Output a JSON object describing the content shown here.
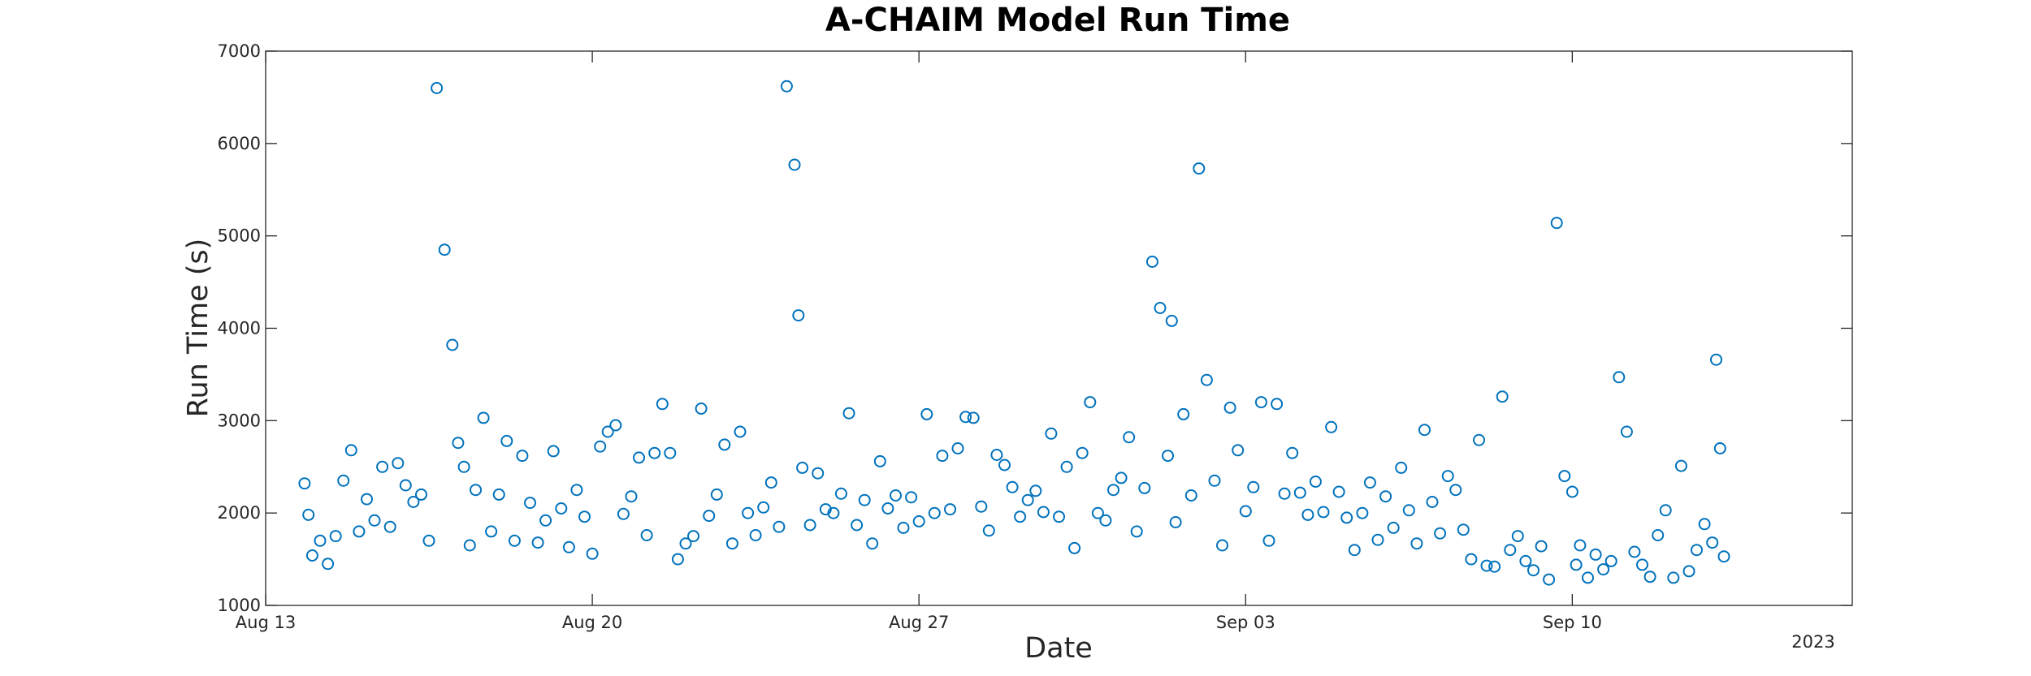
{
  "chart_data": {
    "type": "scatter",
    "title": "A-CHAIM Model Run Time",
    "xlabel": "Date",
    "ylabel": "Run Time (s)",
    "x_tick_labels": [
      "Aug 13",
      "Aug 20",
      "Aug 27",
      "Sep 03",
      "Sep 10"
    ],
    "x_tick_dates": [
      "2023-08-13",
      "2023-08-20",
      "2023-08-27",
      "2023-09-03",
      "2023-09-10"
    ],
    "x_secondary_label": "2023",
    "xlim": [
      "2023-08-13",
      "2023-09-16"
    ],
    "y_ticks": [
      1000,
      2000,
      3000,
      4000,
      5000,
      6000,
      7000
    ],
    "ylim": [
      1000,
      7000
    ],
    "grid": false,
    "marker": "open-circle",
    "marker_color": "#0072BD",
    "series": [
      {
        "x": [
          "2023-08-13 20:00",
          "2023-08-13 22:00",
          "2023-08-14 00:00",
          "2023-08-14 04:00",
          "2023-08-14 08:00",
          "2023-08-14 12:00",
          "2023-08-14 16:00",
          "2023-08-14 20:00",
          "2023-08-15 00:00",
          "2023-08-15 04:00",
          "2023-08-15 08:00",
          "2023-08-15 12:00",
          "2023-08-15 16:00",
          "2023-08-15 20:00",
          "2023-08-16 00:00",
          "2023-08-16 04:00",
          "2023-08-16 08:00",
          "2023-08-16 12:00",
          "2023-08-16 16:00",
          "2023-08-16 20:00",
          "2023-08-17 00:00",
          "2023-08-17 03:00",
          "2023-08-17 06:00",
          "2023-08-17 09:00",
          "2023-08-17 12:00",
          "2023-08-17 16:00",
          "2023-08-17 20:00",
          "2023-08-18 00:00",
          "2023-08-18 04:00",
          "2023-08-18 08:00",
          "2023-08-18 12:00",
          "2023-08-18 16:00",
          "2023-08-18 20:00",
          "2023-08-19 00:00",
          "2023-08-19 04:00",
          "2023-08-19 08:00",
          "2023-08-19 12:00",
          "2023-08-19 16:00",
          "2023-08-19 20:00",
          "2023-08-20 00:00",
          "2023-08-20 04:00",
          "2023-08-20 08:00",
          "2023-08-20 12:00",
          "2023-08-20 16:00",
          "2023-08-20 20:00",
          "2023-08-21 00:00",
          "2023-08-21 04:00",
          "2023-08-21 08:00",
          "2023-08-21 12:00",
          "2023-08-21 16:00",
          "2023-08-21 20:00",
          "2023-08-22 00:00",
          "2023-08-22 04:00",
          "2023-08-22 08:00",
          "2023-08-22 12:00",
          "2023-08-22 16:00",
          "2023-08-22 20:00",
          "2023-08-23 00:00",
          "2023-08-23 04:00",
          "2023-08-23 08:00",
          "2023-08-23 12:00",
          "2023-08-23 16:00",
          "2023-08-23 20:00",
          "2023-08-24 00:00",
          "2023-08-24 04:00",
          "2023-08-24 08:00",
          "2023-08-24 10:00",
          "2023-08-24 12:00",
          "2023-08-24 16:00",
          "2023-08-24 20:00",
          "2023-08-25 00:00",
          "2023-08-25 04:00",
          "2023-08-25 08:00",
          "2023-08-25 12:00",
          "2023-08-25 16:00",
          "2023-08-25 20:00",
          "2023-08-26 00:00",
          "2023-08-26 04:00",
          "2023-08-26 08:00",
          "2023-08-26 12:00",
          "2023-08-26 16:00",
          "2023-08-26 20:00",
          "2023-08-27 00:00",
          "2023-08-27 04:00",
          "2023-08-27 08:00",
          "2023-08-27 12:00",
          "2023-08-27 16:00",
          "2023-08-27 20:00",
          "2023-08-28 00:00",
          "2023-08-28 04:00",
          "2023-08-28 08:00",
          "2023-08-28 12:00",
          "2023-08-28 16:00",
          "2023-08-28 20:00",
          "2023-08-29 00:00",
          "2023-08-29 04:00",
          "2023-08-29 08:00",
          "2023-08-29 12:00",
          "2023-08-29 16:00",
          "2023-08-29 20:00",
          "2023-08-30 00:00",
          "2023-08-30 04:00",
          "2023-08-30 08:00",
          "2023-08-30 12:00",
          "2023-08-30 16:00",
          "2023-08-30 20:00",
          "2023-08-31 00:00",
          "2023-08-31 04:00",
          "2023-08-31 08:00",
          "2023-08-31 12:00",
          "2023-08-31 16:00",
          "2023-08-31 20:00",
          "2023-09-01 00:00",
          "2023-09-01 04:00",
          "2023-09-01 08:00",
          "2023-09-01 10:00",
          "2023-09-01 12:00",
          "2023-09-01 16:00",
          "2023-09-01 20:00",
          "2023-09-02 00:00",
          "2023-09-02 04:00",
          "2023-09-02 08:00",
          "2023-09-02 12:00",
          "2023-09-02 16:00",
          "2023-09-02 20:00",
          "2023-09-03 00:00",
          "2023-09-03 04:00",
          "2023-09-03 08:00",
          "2023-09-03 12:00",
          "2023-09-03 16:00",
          "2023-09-03 20:00",
          "2023-09-04 00:00",
          "2023-09-04 04:00",
          "2023-09-04 08:00",
          "2023-09-04 12:00",
          "2023-09-04 16:00",
          "2023-09-04 20:00",
          "2023-09-05 00:00",
          "2023-09-05 04:00",
          "2023-09-05 08:00",
          "2023-09-05 12:00",
          "2023-09-05 16:00",
          "2023-09-05 20:00",
          "2023-09-06 00:00",
          "2023-09-06 04:00",
          "2023-09-06 08:00",
          "2023-09-06 12:00",
          "2023-09-06 16:00",
          "2023-09-06 20:00",
          "2023-09-07 00:00",
          "2023-09-07 04:00",
          "2023-09-07 08:00",
          "2023-09-07 12:00",
          "2023-09-07 16:00",
          "2023-09-07 20:00",
          "2023-09-08 00:00",
          "2023-09-08 04:00",
          "2023-09-08 08:00",
          "2023-09-08 12:00",
          "2023-09-08 16:00",
          "2023-09-08 20:00",
          "2023-09-09 00:00",
          "2023-09-09 04:00",
          "2023-09-09 08:00",
          "2023-09-09 12:00",
          "2023-09-09 16:00",
          "2023-09-09 20:00",
          "2023-09-10 00:00",
          "2023-09-10 02:00",
          "2023-09-10 04:00",
          "2023-09-10 08:00",
          "2023-09-10 12:00",
          "2023-09-10 16:00",
          "2023-09-10 20:00",
          "2023-09-11 00:00",
          "2023-09-11 04:00",
          "2023-09-11 08:00",
          "2023-09-11 12:00",
          "2023-09-11 16:00",
          "2023-09-11 20:00",
          "2023-09-12 00:00",
          "2023-09-12 04:00",
          "2023-09-12 08:00",
          "2023-09-12 12:00",
          "2023-09-12 16:00",
          "2023-09-12 20:00",
          "2023-09-13 00:00",
          "2023-09-13 02:00",
          "2023-09-13 04:00",
          "2023-09-13 06:00"
        ],
        "y": [
          2320,
          1980,
          1540,
          1700,
          1450,
          1750,
          2350,
          2680,
          1800,
          2150,
          1920,
          2500,
          1850,
          2540,
          2300,
          2120,
          2200,
          1700,
          6600,
          4850,
          3820,
          2760,
          2500,
          1650,
          2250,
          3030,
          1800,
          2200,
          2780,
          1700,
          2620,
          2110,
          1680,
          1920,
          2670,
          2050,
          1630,
          2250,
          1960,
          1560,
          2720,
          2880,
          2950,
          1990,
          2180,
          2600,
          1760,
          2650,
          3180,
          2650,
          1500,
          1670,
          1750,
          3130,
          1970,
          2200,
          2740,
          1670,
          2880,
          2000,
          1760,
          2060,
          2330,
          1850,
          6620,
          5770,
          4140,
          2490,
          1870,
          2430,
          2040,
          2000,
          2210,
          3080,
          1870,
          2140,
          1670,
          2560,
          2050,
          2190,
          1840,
          2170,
          1910,
          3070,
          2000,
          2620,
          2040,
          2700,
          3040,
          3030,
          2070,
          1810,
          2630,
          2520,
          2280,
          1960,
          2140,
          2240,
          2010,
          2860,
          1960,
          2500,
          1620,
          2650,
          3200,
          2000,
          1920,
          2250,
          2380,
          2820,
          1800,
          2270,
          4720,
          4220,
          2620,
          4080,
          1900,
          3070,
          2190,
          5730,
          3440,
          2350,
          1650,
          3140,
          2680,
          2020,
          2280,
          3200,
          1700,
          3180,
          2210,
          2650,
          2220,
          1980,
          2340,
          2010,
          2930,
          2230,
          1950,
          1600,
          2000,
          2330,
          1710,
          2180,
          1840,
          2490,
          2030,
          1670,
          2900,
          2120,
          1780,
          2400,
          2250,
          1820,
          1500,
          2790,
          1430,
          1420,
          3260,
          1600,
          1750,
          1480,
          1380,
          1640,
          1280,
          5140,
          2400,
          2230,
          1440,
          1650,
          1300,
          1550,
          1390,
          1480,
          3470,
          2880,
          1580,
          1440,
          1310,
          1760,
          2030,
          1300,
          2510,
          1370,
          1600,
          1880,
          1680,
          3660,
          2700,
          1530
        ]
      }
    ]
  }
}
